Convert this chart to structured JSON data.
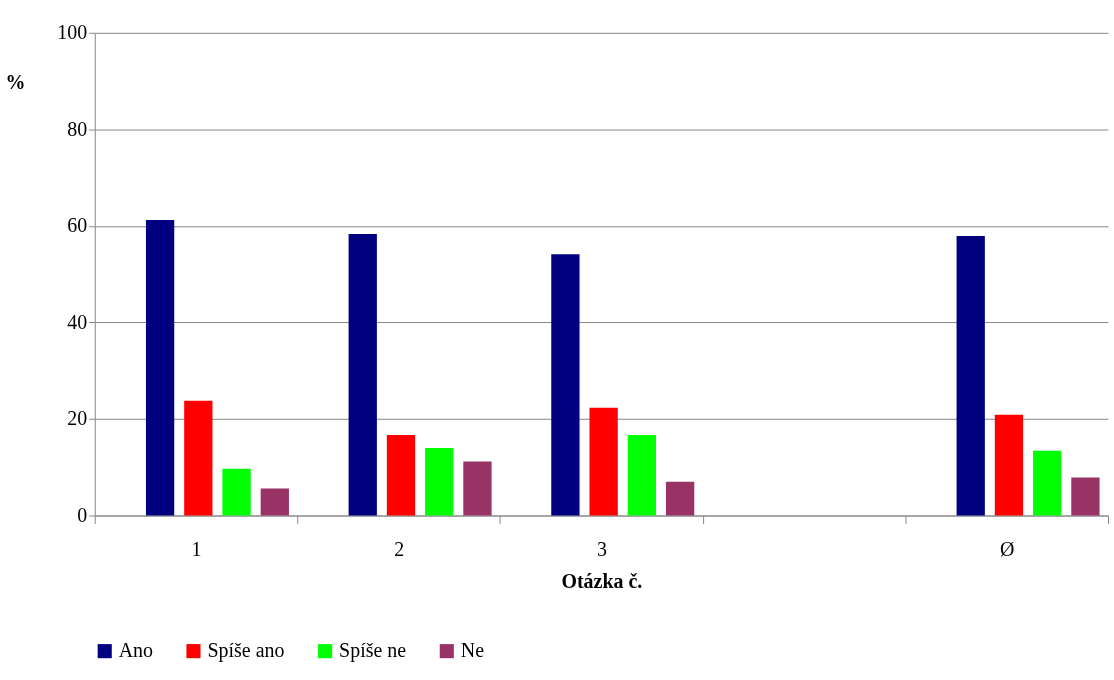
{
  "chart_data": {
    "type": "bar",
    "xlabel": "Otázka č.",
    "ylabel": "%",
    "categories": [
      "1",
      "2",
      "3",
      null,
      "Ø"
    ],
    "series": [
      {
        "name": "Ano",
        "color": "#000080",
        "values": [
          61.2,
          58.3,
          54.1,
          null,
          57.9
        ]
      },
      {
        "name": "Spíše ano",
        "color": "#ff0000",
        "values": [
          23.8,
          16.7,
          22.3,
          null,
          20.9
        ]
      },
      {
        "name": "Spíše ne",
        "color": "#00ff00",
        "values": [
          9.7,
          14.0,
          16.7,
          null,
          13.4
        ]
      },
      {
        "name": "Ne",
        "color": "#993366",
        "values": [
          5.6,
          11.2,
          7.0,
          null,
          7.9
        ]
      }
    ],
    "ylim": [
      0,
      100
    ],
    "yticks": [
      0,
      20,
      40,
      60,
      80,
      100
    ],
    "grid": "y",
    "legend": "bottom"
  }
}
